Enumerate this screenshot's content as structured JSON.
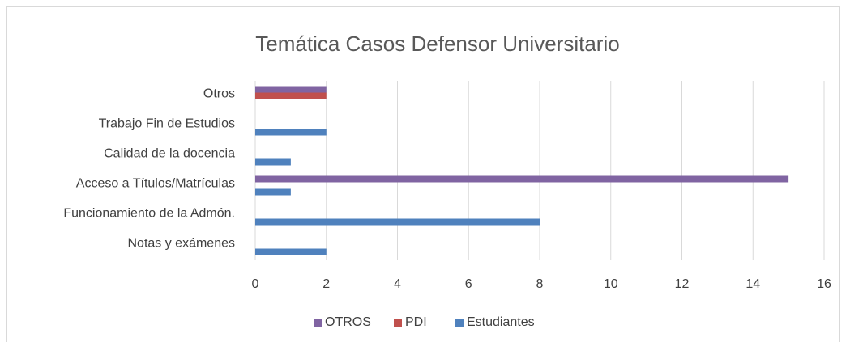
{
  "chart_data": {
    "type": "barh",
    "title": "Temática Casos Defensor Universitario",
    "categories": [
      "Otros",
      "Trabajo Fin de Estudios",
      "Calidad de la docencia",
      "Acceso a Títulos/Matrículas",
      "Funcionamiento de la Admón.",
      "Notas y exámenes"
    ],
    "series": [
      {
        "name": "OTROS",
        "color": "#8064a2",
        "values": [
          2,
          0,
          0,
          15,
          0,
          0
        ]
      },
      {
        "name": "PDI",
        "color": "#c0504d",
        "values": [
          2,
          0,
          0,
          0,
          0,
          0
        ]
      },
      {
        "name": "Estudiantes",
        "color": "#4f81bd",
        "values": [
          0,
          2,
          1,
          1,
          8,
          2
        ]
      }
    ],
    "xlim": [
      0,
      16
    ],
    "xticks": [
      0,
      2,
      4,
      6,
      8,
      10,
      12,
      14,
      16
    ],
    "grid": true,
    "legend": "bottom"
  }
}
